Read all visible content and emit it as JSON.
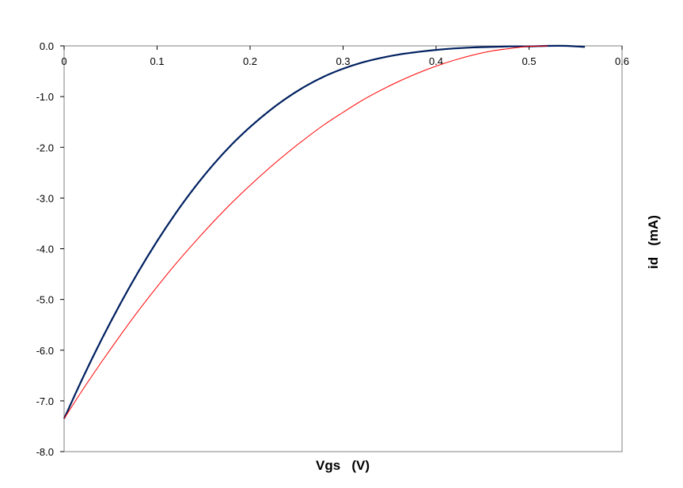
{
  "chart_data": {
    "type": "line",
    "title": "",
    "xlabel": "Vgs   (V)",
    "ylabel": "id   (mA)",
    "xlim": [
      0,
      0.6
    ],
    "ylim": [
      -8.0,
      0.0
    ],
    "x_ticks": [
      "0",
      "0.1",
      "0.2",
      "0.3",
      "0.4",
      "0.5",
      "0.6"
    ],
    "y_ticks": [
      "0.0",
      "-1.0",
      "-2.0",
      "-3.0",
      "-4.0",
      "-5.0",
      "-6.0",
      "-7.0",
      "-8.0"
    ],
    "x_tick_values": [
      0,
      0.1,
      0.2,
      0.3,
      0.4,
      0.5,
      0.6
    ],
    "y_tick_values": [
      0,
      -1,
      -2,
      -3,
      -4,
      -5,
      -6,
      -7,
      -8
    ],
    "grid": false,
    "x_axis_position": "top",
    "ylabel_position": "right",
    "series": [
      {
        "color": "#002060",
        "x": [
          0,
          0.02,
          0.04,
          0.06,
          0.08,
          0.1,
          0.12,
          0.14,
          0.16,
          0.18,
          0.2,
          0.22,
          0.24,
          0.26,
          0.28,
          0.3,
          0.32,
          0.34,
          0.36,
          0.38,
          0.4,
          0.42,
          0.44,
          0.46,
          0.48,
          0.5,
          0.52,
          0.54,
          0.56
        ],
        "y": [
          -7.35,
          -6.55,
          -5.8,
          -5.1,
          -4.45,
          -3.85,
          -3.3,
          -2.8,
          -2.35,
          -1.95,
          -1.6,
          -1.29,
          -1.02,
          -0.79,
          -0.6,
          -0.45,
          -0.33,
          -0.24,
          -0.17,
          -0.12,
          -0.08,
          -0.05,
          -0.03,
          -0.02,
          -0.01,
          -0.01,
          0.0,
          0.0,
          -0.02
        ]
      },
      {
        "color": "#ff0000",
        "x": [
          0,
          0.02,
          0.04,
          0.06,
          0.08,
          0.1,
          0.12,
          0.14,
          0.16,
          0.18,
          0.2,
          0.22,
          0.24,
          0.26,
          0.28,
          0.3,
          0.32,
          0.34,
          0.36,
          0.38,
          0.4,
          0.42,
          0.44,
          0.46,
          0.48,
          0.5,
          0.52
        ],
        "y": [
          -7.35,
          -6.78,
          -6.24,
          -5.72,
          -5.22,
          -4.75,
          -4.3,
          -3.88,
          -3.48,
          -3.1,
          -2.75,
          -2.42,
          -2.11,
          -1.82,
          -1.55,
          -1.31,
          -1.08,
          -0.88,
          -0.7,
          -0.54,
          -0.4,
          -0.28,
          -0.18,
          -0.1,
          -0.05,
          -0.01,
          0.0
        ]
      }
    ]
  }
}
